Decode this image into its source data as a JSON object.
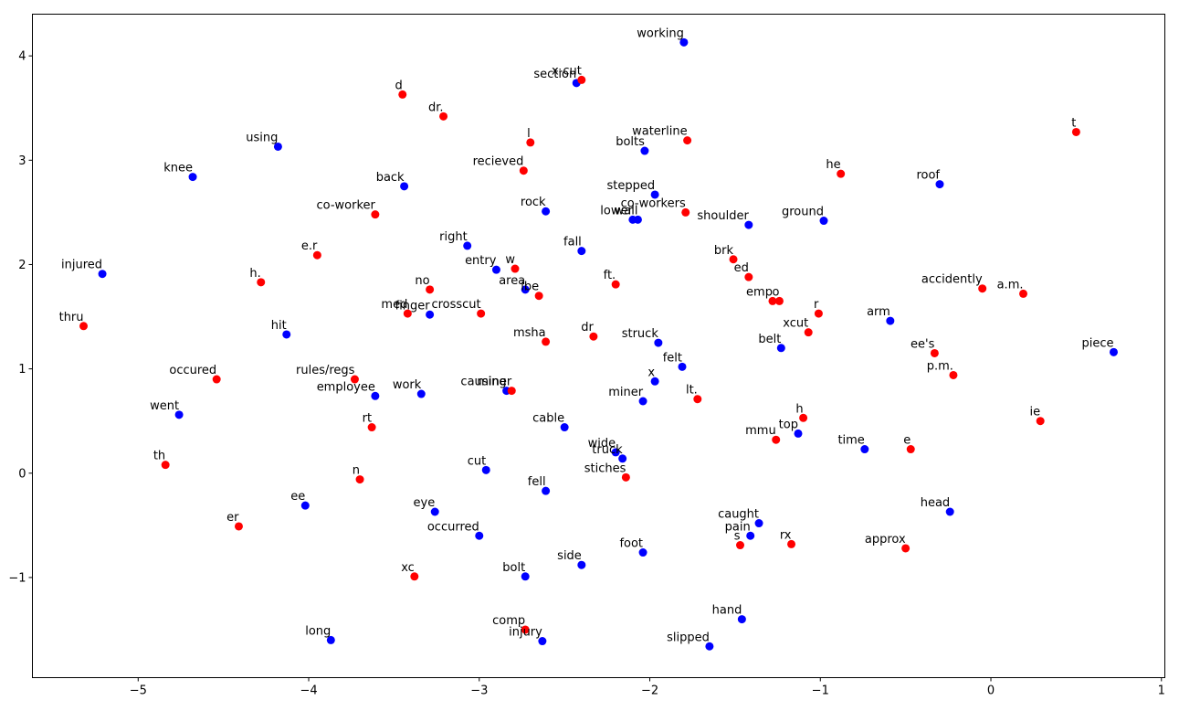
{
  "chart_data": {
    "type": "scatter",
    "title": "",
    "xlabel": "",
    "ylabel": "",
    "xlim": [
      -5.62,
      1.02
    ],
    "ylim": [
      -1.96,
      4.4
    ],
    "xticks": [
      -5,
      -4,
      -3,
      -2,
      -1,
      0,
      1
    ],
    "yticks": [
      -1,
      0,
      1,
      2,
      3,
      4
    ],
    "xtick_labels": [
      "−5",
      "−4",
      "−3",
      "−2",
      "−1",
      "0",
      "1"
    ],
    "ytick_labels": [
      "−1",
      "0",
      "1",
      "2",
      "3",
      "4"
    ],
    "grid": false,
    "legend": "none",
    "colors": {
      "blue": "#0000ff",
      "red": "#ff0000"
    },
    "series": [
      {
        "color": "#0000ff",
        "points": [
          {
            "label": "working",
            "x": -1.8,
            "y": 4.13
          },
          {
            "label": "section",
            "x": -2.43,
            "y": 3.74
          },
          {
            "label": "bolts",
            "x": -2.03,
            "y": 3.09
          },
          {
            "label": "using",
            "x": -4.18,
            "y": 3.13
          },
          {
            "label": "knee",
            "x": -4.68,
            "y": 2.84
          },
          {
            "label": "back",
            "x": -3.44,
            "y": 2.75
          },
          {
            "label": "stepped",
            "x": -1.97,
            "y": 2.67
          },
          {
            "label": "rock",
            "x": -2.61,
            "y": 2.51
          },
          {
            "label": "lower",
            "x": -2.1,
            "y": 2.43
          },
          {
            "label": "wall",
            "x": -2.07,
            "y": 2.43
          },
          {
            "label": "shoulder",
            "x": -1.42,
            "y": 2.38
          },
          {
            "label": "ground",
            "x": -0.98,
            "y": 2.42
          },
          {
            "label": "roof",
            "x": -0.3,
            "y": 2.77
          },
          {
            "label": "right",
            "x": -3.07,
            "y": 2.18
          },
          {
            "label": "fall",
            "x": -2.4,
            "y": 2.13
          },
          {
            "label": "entry",
            "x": -2.9,
            "y": 1.95
          },
          {
            "label": "injured",
            "x": -5.21,
            "y": 1.91
          },
          {
            "label": "area",
            "x": -2.73,
            "y": 1.76
          },
          {
            "label": "finger",
            "x": -3.29,
            "y": 1.52
          },
          {
            "label": "hit",
            "x": -4.13,
            "y": 1.33
          },
          {
            "label": "struck",
            "x": -1.95,
            "y": 1.25
          },
          {
            "label": "arm",
            "x": -0.59,
            "y": 1.46
          },
          {
            "label": "belt",
            "x": -1.23,
            "y": 1.2
          },
          {
            "label": "piece",
            "x": 0.72,
            "y": 1.16
          },
          {
            "label": "felt",
            "x": -1.81,
            "y": 1.02
          },
          {
            "label": "x",
            "x": -1.97,
            "y": 0.88
          },
          {
            "label": "employee",
            "x": -3.61,
            "y": 0.74
          },
          {
            "label": "work",
            "x": -3.34,
            "y": 0.76
          },
          {
            "label": "causing",
            "x": -2.84,
            "y": 0.79
          },
          {
            "label": "miner",
            "x": -2.04,
            "y": 0.69
          },
          {
            "label": "went",
            "x": -4.76,
            "y": 0.56
          },
          {
            "label": "cable",
            "x": -2.5,
            "y": 0.44
          },
          {
            "label": "top",
            "x": -1.13,
            "y": 0.38
          },
          {
            "label": "time",
            "x": -0.74,
            "y": 0.23
          },
          {
            "label": "wide",
            "x": -2.2,
            "y": 0.2
          },
          {
            "label": "truck",
            "x": -2.16,
            "y": 0.14
          },
          {
            "label": "cut",
            "x": -2.96,
            "y": 0.03
          },
          {
            "label": "fell",
            "x": -2.61,
            "y": -0.17
          },
          {
            "label": "ee",
            "x": -4.02,
            "y": -0.31
          },
          {
            "label": "eye",
            "x": -3.26,
            "y": -0.37
          },
          {
            "label": "head",
            "x": -0.24,
            "y": -0.37
          },
          {
            "label": "caught",
            "x": -1.36,
            "y": -0.48
          },
          {
            "label": "pain",
            "x": -1.41,
            "y": -0.6
          },
          {
            "label": "occurred",
            "x": -3.0,
            "y": -0.6
          },
          {
            "label": "foot",
            "x": -2.04,
            "y": -0.76
          },
          {
            "label": "side",
            "x": -2.4,
            "y": -0.88
          },
          {
            "label": "bolt",
            "x": -2.73,
            "y": -0.99
          },
          {
            "label": "hand",
            "x": -1.46,
            "y": -1.4
          },
          {
            "label": "long",
            "x": -3.87,
            "y": -1.6
          },
          {
            "label": "injury",
            "x": -2.63,
            "y": -1.61
          },
          {
            "label": "slipped",
            "x": -1.65,
            "y": -1.66
          }
        ]
      },
      {
        "color": "#ff0000",
        "points": [
          {
            "label": "x-cut",
            "x": -2.4,
            "y": 3.77
          },
          {
            "label": "d",
            "x": -3.45,
            "y": 3.63
          },
          {
            "label": "dr.",
            "x": -3.21,
            "y": 3.42
          },
          {
            "label": "l",
            "x": -2.7,
            "y": 3.17
          },
          {
            "label": "waterline",
            "x": -1.78,
            "y": 3.19
          },
          {
            "label": "t",
            "x": 0.5,
            "y": 3.27
          },
          {
            "label": "recieved",
            "x": -2.74,
            "y": 2.9
          },
          {
            "label": "he",
            "x": -0.88,
            "y": 2.87
          },
          {
            "label": "co-worker",
            "x": -3.61,
            "y": 2.48
          },
          {
            "label": "co-workers",
            "x": -1.79,
            "y": 2.5
          },
          {
            "label": "e.r",
            "x": -3.95,
            "y": 2.09
          },
          {
            "label": "w",
            "x": -2.79,
            "y": 1.96
          },
          {
            "label": "brk",
            "x": -1.51,
            "y": 2.05
          },
          {
            "label": "ed",
            "x": -1.42,
            "y": 1.88
          },
          {
            "label": "h.",
            "x": -4.28,
            "y": 1.83
          },
          {
            "label": "ft.",
            "x": -2.2,
            "y": 1.81
          },
          {
            "label": "no",
            "x": -3.29,
            "y": 1.76
          },
          {
            "label": "accidently",
            "x": -0.05,
            "y": 1.77
          },
          {
            "label": "a.m.",
            "x": 0.19,
            "y": 1.72
          },
          {
            "label": "lbe",
            "x": -2.65,
            "y": 1.7
          },
          {
            "label": "emp",
            "x": -1.28,
            "y": 1.65
          },
          {
            "label": "o",
            "x": -1.24,
            "y": 1.65
          },
          {
            "label": "med",
            "x": -3.42,
            "y": 1.53
          },
          {
            "label": "crosscut",
            "x": -2.99,
            "y": 1.53
          },
          {
            "label": "r",
            "x": -1.01,
            "y": 1.53
          },
          {
            "label": "xcut",
            "x": -1.07,
            "y": 1.35
          },
          {
            "label": "thru",
            "x": -5.32,
            "y": 1.41
          },
          {
            "label": "dr",
            "x": -2.33,
            "y": 1.31
          },
          {
            "label": "msha",
            "x": -2.61,
            "y": 1.26
          },
          {
            "label": "ee's",
            "x": -0.33,
            "y": 1.15
          },
          {
            "label": "p.m.",
            "x": -0.22,
            "y": 0.94
          },
          {
            "label": "occured",
            "x": -4.54,
            "y": 0.9
          },
          {
            "label": "rules/regs",
            "x": -3.73,
            "y": 0.9
          },
          {
            "label": "miner",
            "x": -2.81,
            "y": 0.79
          },
          {
            "label": "lt.",
            "x": -1.72,
            "y": 0.71
          },
          {
            "label": "h",
            "x": -1.1,
            "y": 0.53
          },
          {
            "label": "ie",
            "x": 0.29,
            "y": 0.5
          },
          {
            "label": "rt",
            "x": -3.63,
            "y": 0.44
          },
          {
            "label": "mmu",
            "x": -1.26,
            "y": 0.32
          },
          {
            "label": "e",
            "x": -0.47,
            "y": 0.23
          },
          {
            "label": "th",
            "x": -4.84,
            "y": 0.08
          },
          {
            "label": "stiches",
            "x": -2.14,
            "y": -0.04
          },
          {
            "label": "n",
            "x": -3.7,
            "y": -0.06
          },
          {
            "label": "er",
            "x": -4.41,
            "y": -0.51
          },
          {
            "label": "s",
            "x": -1.47,
            "y": -0.69
          },
          {
            "label": "rx",
            "x": -1.17,
            "y": -0.68
          },
          {
            "label": "approx",
            "x": -0.5,
            "y": -0.72
          },
          {
            "label": "xc",
            "x": -3.38,
            "y": -0.99
          },
          {
            "label": "comp",
            "x": -2.73,
            "y": -1.5
          }
        ]
      }
    ]
  }
}
